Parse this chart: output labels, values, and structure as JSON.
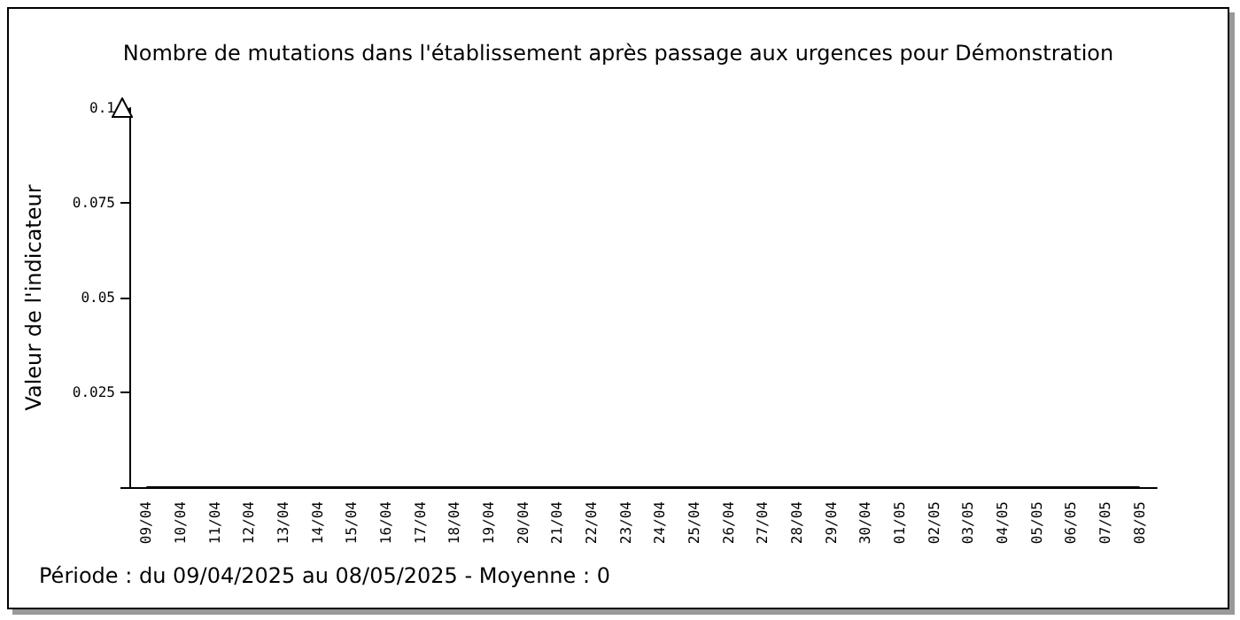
{
  "chart_data": {
    "type": "line",
    "title": "Nombre de mutations dans l'établissement après passage aux urgences pour Démonstration",
    "ylabel": "Valeur de l'indicateur",
    "categories": [
      "09/04",
      "10/04",
      "11/04",
      "12/04",
      "13/04",
      "14/04",
      "15/04",
      "16/04",
      "17/04",
      "18/04",
      "19/04",
      "20/04",
      "21/04",
      "22/04",
      "23/04",
      "24/04",
      "25/04",
      "26/04",
      "27/04",
      "28/04",
      "29/04",
      "30/04",
      "01/05",
      "02/05",
      "03/05",
      "04/05",
      "05/05",
      "06/05",
      "07/05",
      "08/05"
    ],
    "series": [
      {
        "color": "#000000",
        "values": [
          0,
          0,
          0,
          0,
          0,
          0,
          0,
          0,
          0,
          0,
          0,
          0,
          0,
          0,
          0,
          0,
          0,
          0,
          0,
          0,
          0,
          0,
          0,
          0,
          0,
          0,
          0,
          0,
          0,
          0
        ]
      }
    ],
    "ylim": [
      0,
      0.1
    ],
    "yticks": [
      {
        "value": 0,
        "label": null
      },
      0.025,
      0.05,
      0.075,
      0.1
    ],
    "grid": false,
    "marker": "none",
    "annotations": [
      "Période : du 09/04/2025 au 08/05/2025 - Moyenne : 0"
    ]
  }
}
